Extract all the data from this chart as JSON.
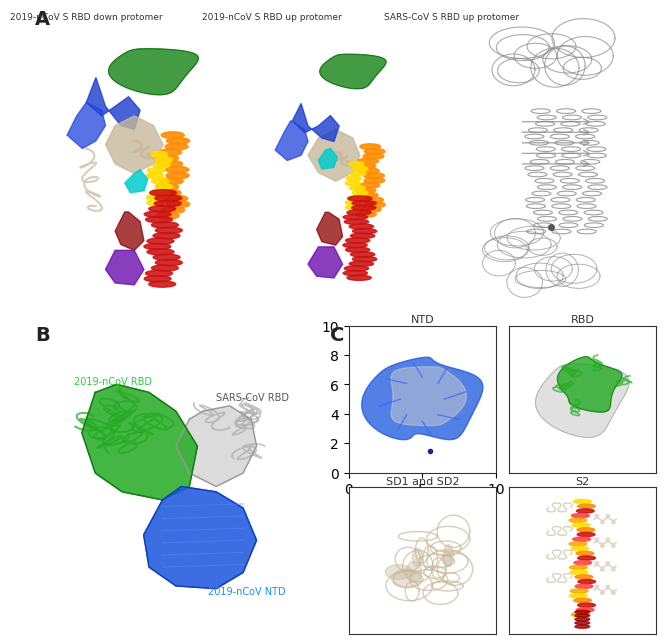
{
  "title_A": "A",
  "title_B": "B",
  "title_C": "C",
  "panel_A_labels": [
    "2019-nCoV S RBD down protomer",
    "2019-nCoV S RBD up protomer",
    "SARS-CoV S RBD up protomer"
  ],
  "panel_C_labels": [
    "NTD",
    "RBD",
    "SD1 and SD2",
    "S2"
  ],
  "panel_B_labels": [
    "2019-nCoV RBD",
    "SARS-CoV RBD",
    "2019-nCoV NTD"
  ],
  "panel_B_label_colors": [
    "#2ecc40",
    "#555555",
    "#1a8cff"
  ],
  "bg_color": "#ffffff",
  "border_color": "#333333",
  "figure_width": 6.4,
  "figure_height": 6.72
}
